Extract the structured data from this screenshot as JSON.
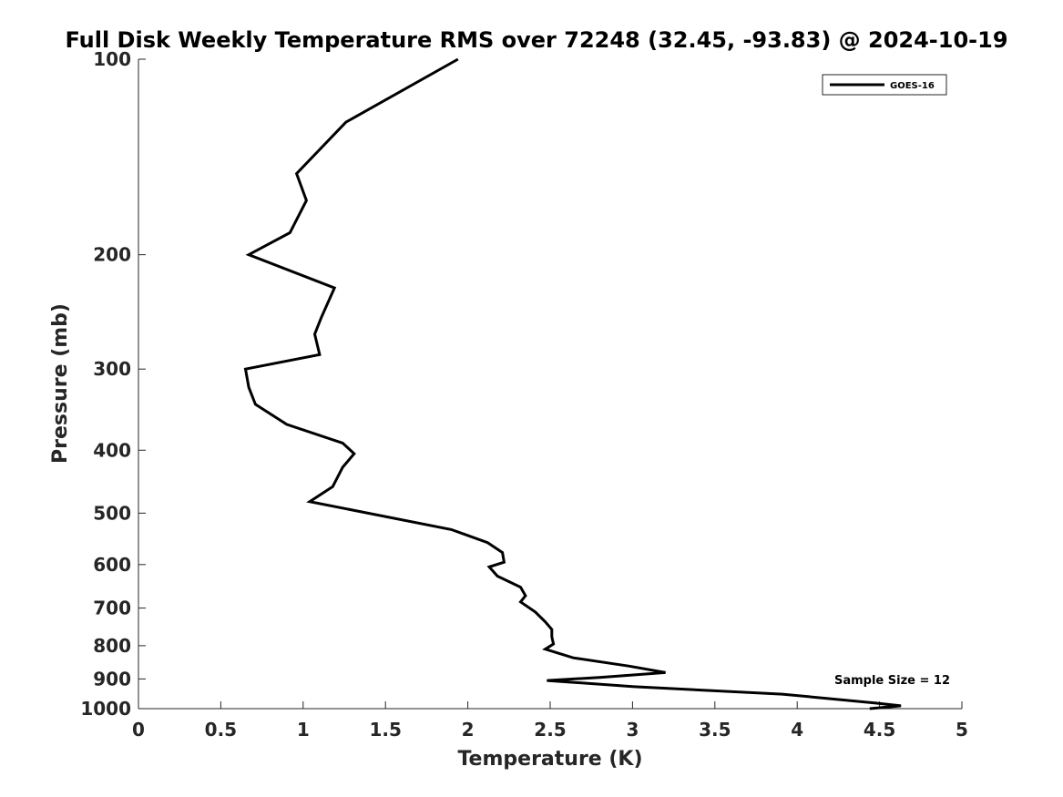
{
  "chart_data": {
    "type": "line",
    "title": "Full Disk Weekly Temperature RMS over 72248 (32.45, -93.83) @ 2024-10-19",
    "xlabel": "Temperature (K)",
    "ylabel": "Pressure (mb)",
    "xlim": [
      0,
      5
    ],
    "ylim": [
      100,
      1000
    ],
    "y_scale": "log",
    "y_reversed": true,
    "x_ticks": [
      "0",
      "0.5",
      "1",
      "1.5",
      "2",
      "2.5",
      "3",
      "3.5",
      "4",
      "4.5",
      "5"
    ],
    "y_ticks": [
      "100",
      "200",
      "300",
      "400",
      "500",
      "600",
      "700",
      "800",
      "900",
      "1000"
    ],
    "grid": false,
    "legend_position": "top-right",
    "annotation": "Sample Size = 12",
    "series": [
      {
        "name": "GOES-16",
        "color": "#000000",
        "points": [
          [
            1.94,
            100
          ],
          [
            1.26,
            125
          ],
          [
            0.96,
            150
          ],
          [
            1.02,
            165
          ],
          [
            0.92,
            185
          ],
          [
            0.67,
            200
          ],
          [
            1.19,
            225
          ],
          [
            1.11,
            250
          ],
          [
            1.07,
            265
          ],
          [
            1.1,
            285
          ],
          [
            0.65,
            300
          ],
          [
            0.67,
            320
          ],
          [
            0.71,
            340
          ],
          [
            0.9,
            365
          ],
          [
            1.24,
            390
          ],
          [
            1.31,
            405
          ],
          [
            1.24,
            425
          ],
          [
            1.18,
            455
          ],
          [
            1.04,
            480
          ],
          [
            1.9,
            530
          ],
          [
            2.12,
            555
          ],
          [
            2.21,
            575
          ],
          [
            2.22,
            595
          ],
          [
            2.13,
            605
          ],
          [
            2.18,
            625
          ],
          [
            2.32,
            650
          ],
          [
            2.35,
            670
          ],
          [
            2.32,
            685
          ],
          [
            2.41,
            710
          ],
          [
            2.47,
            735
          ],
          [
            2.51,
            755
          ],
          [
            2.51,
            775
          ],
          [
            2.52,
            795
          ],
          [
            2.47,
            810
          ],
          [
            2.64,
            835
          ],
          [
            2.98,
            860
          ],
          [
            3.2,
            880
          ],
          [
            2.81,
            895
          ],
          [
            2.48,
            905
          ],
          [
            3.01,
            925
          ],
          [
            3.91,
            950
          ],
          [
            4.47,
            980
          ],
          [
            4.63,
            990
          ],
          [
            4.44,
            1000
          ]
        ]
      }
    ]
  }
}
